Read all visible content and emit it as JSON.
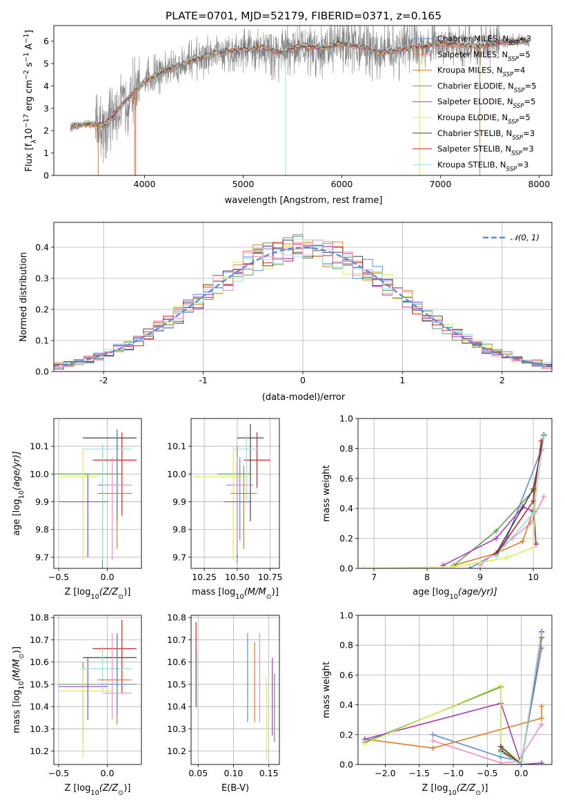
{
  "chart_data": [
    {
      "id": "spectrum",
      "type": "line",
      "title": "PLATE=0701, MJD=52179, FIBERID=0371, z=0.165",
      "xlabel": "wavelength [Angstrom, rest frame]",
      "ylabel": "Flux [f",
      "ylabel_sub": "λ",
      "ylabel_mid": "10",
      "ylabel_exp": "−17",
      "ylabel_tail": " erg cm",
      "ylabel_exp2": "−2",
      "ylabel_tail2": " s",
      "ylabel_exp3": "−1",
      "ylabel_tail3": " A",
      "ylabel_exp4": "−1",
      "ylabel_end": "]",
      "xlim": [
        3080,
        8130
      ],
      "ylim": [
        0,
        6.7
      ],
      "xticks": [
        4000,
        5000,
        6000,
        7000,
        8000
      ],
      "yticks": [
        0,
        1,
        2,
        3,
        4,
        5,
        6
      ],
      "grid": false,
      "legend_position": "right",
      "observed_color": "#808080",
      "continuum": {
        "x": [
          3250,
          3400,
          3600,
          3800,
          4000,
          4200,
          4400,
          4600,
          4800,
          5000,
          5200,
          5400,
          5600,
          5800,
          6000,
          6200,
          6400,
          6600,
          6800,
          7000,
          7200,
          7400,
          7600,
          7800,
          7900
        ],
        "y": [
          2.15,
          2.3,
          2.25,
          3.3,
          4.2,
          4.7,
          5.0,
          5.3,
          5.55,
          5.6,
          5.7,
          5.5,
          5.8,
          5.7,
          5.9,
          5.75,
          5.5,
          5.6,
          5.75,
          5.9,
          5.85,
          5.75,
          5.95,
          6.0,
          6.0
        ]
      },
      "legend": [
        {
          "pre": "Chabrier MILES, N",
          "sub": "SSP",
          "post": "=3",
          "color": "#5b8bd9"
        },
        {
          "pre": "Salpeter MILES, N",
          "sub": "SSP",
          "post": "=5",
          "color": "#ef7b7b"
        },
        {
          "pre": "Kroupa MILES, N",
          "sub": "SSP",
          "post": "=4",
          "color": "#e07b20"
        },
        {
          "pre": "Chabrier ELODIE, N",
          "sub": "SSP",
          "post": "=5",
          "color": "#5f9e55"
        },
        {
          "pre": "Salpeter ELODIE, N",
          "sub": "SSP",
          "post": "=5",
          "color": "#a53bbd"
        },
        {
          "pre": "Kroupa ELODIE, N",
          "sub": "SSP",
          "post": "=5",
          "color": "#d9ef5a"
        },
        {
          "pre": "Chabrier STELIB, N",
          "sub": "SSP",
          "post": "=3",
          "color": "#404040"
        },
        {
          "pre": "Salpeter STELIB, N",
          "sub": "SSP",
          "post": "=3",
          "color": "#c9201c"
        },
        {
          "pre": "Kroupa STELIB, N",
          "sub": "SSP",
          "post": "=3",
          "color": "#8fe0e0"
        }
      ]
    },
    {
      "id": "residuals",
      "type": "line",
      "xlabel": "(data-model)/error",
      "ylabel": "Normed distribution",
      "xlim": [
        -2.5,
        2.5
      ],
      "ylim": [
        0,
        0.48
      ],
      "xticks": [
        -2,
        -1,
        0,
        1,
        2
      ],
      "yticks": [
        0.0,
        0.1,
        0.2,
        0.3,
        0.4
      ],
      "ytick_labels": [
        "0.0",
        "0.1",
        "0.2",
        "0.3",
        "0.4"
      ],
      "grid": true,
      "legend_label": "𝒩(0, 1)",
      "gaussian_color": "#5b8bd9",
      "bin_width": 0.1,
      "hist_colors": [
        "#5b8bd9",
        "#e07b20",
        "#5f9e55",
        "#a53bbd",
        "#d9ef5a",
        "#404040",
        "#c9201c",
        "#8fe0e0",
        "#ef8fbf"
      ]
    },
    {
      "id": "age-vs-Z",
      "type": "scatter",
      "xlabel": "Z [log",
      "xlabel_sub": "10",
      "xlabel_tail": "(Z/Z",
      "xlabel_sub2": "⊙",
      "xlabel_end": ")]",
      "ylabel": "age  [log",
      "ylabel_sub": "10",
      "ylabel_tail": "(age/yr)]",
      "xlim": [
        -0.55,
        0.35
      ],
      "ylim": [
        9.66,
        10.2
      ],
      "xticks": [
        -0.5,
        0.0
      ],
      "xtick_labels": [
        "−0.5",
        "0.0"
      ],
      "yticks": [
        9.7,
        9.8,
        9.9,
        10.0,
        10.1
      ],
      "ytick_labels": [
        "9.7",
        "9.8",
        "9.9",
        "10.0",
        "10.1"
      ],
      "grid": true,
      "points": [
        {
          "x": -0.05,
          "y": 10.0,
          "xerr": [
            0.5,
            0.2
          ],
          "yerr": [
            0.4,
            0.1
          ],
          "color": "#5f9e55"
        },
        {
          "x": -0.25,
          "y": 9.99,
          "xerr": [
            0.25,
            0.15
          ],
          "yerr": [
            0.3,
            0.1
          ],
          "color": "#d9ef5a"
        },
        {
          "x": -0.2,
          "y": 9.9,
          "xerr": [
            0.3,
            0.2
          ],
          "yerr": [
            0.2,
            0.1
          ],
          "color": "#a53bbd"
        },
        {
          "x": 0.1,
          "y": 10.13,
          "xerr": [
            0.35,
            0.2
          ],
          "yerr": [
            0.3,
            0.03
          ],
          "color": "#404040"
        },
        {
          "x": 0.15,
          "y": 10.05,
          "xerr": [
            0.3,
            0.15
          ],
          "yerr": [
            0.2,
            0.1
          ],
          "color": "#c9201c"
        },
        {
          "x": -0.05,
          "y": 10.09,
          "xerr": [
            0.2,
            0.3
          ],
          "yerr": [
            0.4,
            0.02
          ],
          "color": "#8fe0e0"
        },
        {
          "x": 0.1,
          "y": 9.93,
          "xerr": [
            0.2,
            0.15
          ],
          "yerr": [
            0.2,
            0.1
          ],
          "color": "#e07b20"
        },
        {
          "x": 0.1,
          "y": 9.96,
          "xerr": [
            0.2,
            0.15
          ],
          "yerr": [
            0.1,
            0.2
          ],
          "color": "#5b8bd9"
        },
        {
          "x": 0.05,
          "y": 9.96,
          "xerr": [
            0.1,
            0.2
          ],
          "yerr": [
            0.27,
            0.1
          ],
          "color": "#ef8fbf"
        }
      ]
    },
    {
      "id": "age-vs-mass",
      "type": "scatter",
      "xlabel": "mass [log",
      "xlabel_sub": "10",
      "xlabel_tail": "(M/M",
      "xlabel_sub2": "⊙",
      "xlabel_end": ")]",
      "xlim": [
        10.15,
        10.82
      ],
      "ylim": [
        9.66,
        10.2
      ],
      "xticks": [
        10.25,
        10.5,
        10.75
      ],
      "xtick_labels": [
        "10.25",
        "10.50",
        "10.75"
      ],
      "yticks": [
        9.7,
        9.8,
        9.9,
        10.0,
        10.1
      ],
      "ytick_labels": [
        "9.7",
        "9.8",
        "9.9",
        "10.0",
        "10.1"
      ],
      "grid": true,
      "points": [
        {
          "x": 10.5,
          "y": 10.0,
          "xerr": [
            0.15,
            0.1
          ],
          "yerr": [
            0.32,
            0.1
          ],
          "color": "#5f9e55"
        },
        {
          "x": 10.47,
          "y": 9.99,
          "xerr": [
            0.3,
            0.1
          ],
          "yerr": [
            0.3,
            0.1
          ],
          "color": "#d9ef5a"
        },
        {
          "x": 10.5,
          "y": 9.9,
          "xerr": [
            0.1,
            0.1
          ],
          "yerr": [
            0.2,
            0.15
          ],
          "color": "#a53bbd"
        },
        {
          "x": 10.6,
          "y": 10.13,
          "xerr": [
            0.1,
            0.1
          ],
          "yerr": [
            0.3,
            0.05
          ],
          "color": "#404040"
        },
        {
          "x": 10.65,
          "y": 10.05,
          "xerr": [
            0.1,
            0.1
          ],
          "yerr": [
            0.1,
            0.1
          ],
          "color": "#c9201c"
        },
        {
          "x": 10.57,
          "y": 10.09,
          "xerr": [
            0.1,
            0.1
          ],
          "yerr": [
            0.2,
            0.05
          ],
          "color": "#8fe0e0"
        },
        {
          "x": 10.55,
          "y": 9.93,
          "xerr": [
            0.1,
            0.1
          ],
          "yerr": [
            0.2,
            0.1
          ],
          "color": "#e07b20"
        },
        {
          "x": 10.52,
          "y": 9.96,
          "xerr": [
            0.1,
            0.1
          ],
          "yerr": [
            0.2,
            0.1
          ],
          "color": "#5b8bd9"
        },
        {
          "x": 10.5,
          "y": 9.96,
          "xerr": [
            0.05,
            0.1
          ],
          "yerr": [
            0.25,
            0.1
          ],
          "color": "#ef8fbf"
        }
      ]
    },
    {
      "id": "weight-vs-age",
      "type": "line",
      "xlabel": "age  [log",
      "xlabel_sub": "10",
      "xlabel_tail": "(age/yr)]",
      "ylabel": "mass weight",
      "xlim": [
        6.7,
        10.35
      ],
      "ylim": [
        0,
        1.0
      ],
      "xticks": [
        7,
        8,
        9,
        10
      ],
      "yticks": [
        0.0,
        0.2,
        0.4,
        0.6,
        0.8,
        1.0
      ],
      "ytick_labels": [
        "0.0",
        "0.2",
        "0.4",
        "0.6",
        "0.8",
        "1.0"
      ],
      "grid": true,
      "series": [
        {
          "color": "#5b8bd9",
          "x": [
            8.8,
            9.3,
            9.5,
            10.15
          ],
          "y": [
            0.0,
            0.1,
            0.2,
            0.79
          ]
        },
        {
          "color": "#ef8fbf",
          "x": [
            9.0,
            9.6,
            9.95,
            10.2
          ],
          "y": [
            0.02,
            0.2,
            0.3,
            0.48
          ]
        },
        {
          "color": "#e07b20",
          "x": [
            8.5,
            9.3,
            9.8,
            10.0
          ],
          "y": [
            0.02,
            0.1,
            0.18,
            0.39
          ]
        },
        {
          "color": "#5f9e55",
          "x": [
            8.5,
            9.3,
            10.0,
            10.05
          ],
          "y": [
            0.02,
            0.25,
            0.52,
            0.17
          ]
        },
        {
          "color": "#a53bbd",
          "x": [
            8.3,
            9.3,
            9.8,
            10.0,
            10.05
          ],
          "y": [
            0.02,
            0.2,
            0.41,
            0.38,
            0.16
          ]
        },
        {
          "color": "#d9ef5a",
          "x": [
            6.8,
            8.5,
            9.5,
            10.0,
            10.05
          ],
          "y": [
            0.0,
            0.01,
            0.07,
            0.14,
            0.52
          ]
        },
        {
          "color": "#404040",
          "x": [
            9.3,
            10.0,
            10.2
          ],
          "y": [
            0.1,
            0.53,
            0.89
          ]
        },
        {
          "color": "#c9201c",
          "x": [
            9.3,
            10.0,
            10.15
          ],
          "y": [
            0.09,
            0.45,
            0.85
          ]
        },
        {
          "color": "#8fe0e0",
          "x": [
            9.3,
            10.0,
            10.2
          ],
          "y": [
            0.08,
            0.37,
            0.88
          ]
        }
      ]
    },
    {
      "id": "mass-vs-Z",
      "type": "scatter",
      "xlabel": "Z [log",
      "xlabel_sub": "10",
      "xlabel_tail": "(Z/Z",
      "xlabel_sub2": "⊙",
      "xlabel_end": ")]",
      "ylabel": "mass [log",
      "ylabel_sub": "10",
      "ylabel_tail": "(M/M",
      "ylabel_sub2": "⊙",
      "ylabel_end": ")]",
      "xlim": [
        -0.55,
        0.35
      ],
      "ylim": [
        10.14,
        10.81
      ],
      "xticks": [
        -0.5,
        0.0
      ],
      "xtick_labels": [
        "−0.5",
        "0.0"
      ],
      "yticks": [
        10.2,
        10.3,
        10.4,
        10.5,
        10.6,
        10.7,
        10.8
      ],
      "ytick_labels": [
        "10.2",
        "10.3",
        "10.4",
        "10.5",
        "10.6",
        "10.7",
        "10.8"
      ],
      "grid": true,
      "points": [
        {
          "x": -0.25,
          "y": 10.5,
          "xerr": [
            0.25,
            0.55
          ],
          "yerr": [
            0.26,
            0.1
          ],
          "color": "#5f9e55"
        },
        {
          "x": -0.25,
          "y": 10.47,
          "xerr": [
            0.25,
            0.3
          ],
          "yerr": [
            0.3,
            0.1
          ],
          "color": "#d9ef5a"
        },
        {
          "x": -0.2,
          "y": 10.49,
          "xerr": [
            0.3,
            0.2
          ],
          "yerr": [
            0.15,
            0.13
          ],
          "color": "#a53bbd"
        },
        {
          "x": 0.1,
          "y": 10.62,
          "xerr": [
            0.35,
            0.2
          ],
          "yerr": [
            0.2,
            0.1
          ],
          "color": "#404040"
        },
        {
          "x": 0.15,
          "y": 10.66,
          "xerr": [
            0.3,
            0.15
          ],
          "yerr": [
            0.2,
            0.13
          ],
          "color": "#c9201c"
        },
        {
          "x": -0.05,
          "y": 10.57,
          "xerr": [
            0.2,
            0.3
          ],
          "yerr": [
            0.1,
            0.1
          ],
          "color": "#8fe0e0"
        },
        {
          "x": 0.1,
          "y": 10.52,
          "xerr": [
            0.2,
            0.15
          ],
          "yerr": [
            0.2,
            0.17
          ],
          "color": "#e07b20"
        },
        {
          "x": 0.1,
          "y": 10.5,
          "xerr": [
            0.2,
            0.15
          ],
          "yerr": [
            0.14,
            0.23
          ],
          "color": "#5b8bd9"
        },
        {
          "x": 0.05,
          "y": 10.46,
          "xerr": [
            0.1,
            0.2
          ],
          "yerr": [
            0.12,
            0.27
          ],
          "color": "#ef8fbf"
        }
      ]
    },
    {
      "id": "mass-vs-ebv",
      "type": "scatter",
      "xlabel": "E(B-V)",
      "xlim": [
        0.04,
        0.165
      ],
      "ylim": [
        10.14,
        10.81
      ],
      "xticks": [
        0.05,
        0.1,
        0.15
      ],
      "xtick_labels": [
        "0.05",
        "0.10",
        "0.15"
      ],
      "yticks": [
        10.2,
        10.3,
        10.4,
        10.5,
        10.6,
        10.7,
        10.8
      ],
      "ytick_labels": [
        "10.2",
        "10.3",
        "10.4",
        "10.5",
        "10.6",
        "10.7",
        "10.8"
      ],
      "grid": true,
      "points": [
        {
          "x": 0.047,
          "y": 10.56,
          "yerr": [
            0.16,
            0.22
          ],
          "color": "#c9201c"
        },
        {
          "x": 0.048,
          "y": 10.53,
          "yerr": [
            0.14,
            0.12
          ],
          "color": "#8fe0e0"
        },
        {
          "x": 0.12,
          "y": 10.53,
          "yerr": [
            0.2,
            0.2
          ],
          "color": "#5b8bd9"
        },
        {
          "x": 0.13,
          "y": 10.53,
          "yerr": [
            0.2,
            0.16
          ],
          "color": "#e07b20"
        },
        {
          "x": 0.137,
          "y": 10.53,
          "yerr": [
            0.2,
            0.2
          ],
          "color": "#ef8fbf"
        },
        {
          "x": 0.147,
          "y": 10.39,
          "yerr": [
            0.22,
            0.14
          ],
          "color": "#d9ef5a"
        },
        {
          "x": 0.155,
          "y": 10.44,
          "yerr": [
            0.17,
            0.18
          ],
          "color": "#a53bbd"
        },
        {
          "x": 0.158,
          "y": 10.39,
          "yerr": [
            0.15,
            0.16
          ],
          "color": "#5f9e55"
        }
      ]
    },
    {
      "id": "weight-vs-Z",
      "type": "line",
      "xlabel": "Z [log",
      "xlabel_sub": "10",
      "xlabel_tail": "(Z/Z",
      "xlabel_sub2": "⊙",
      "xlabel_end": ")]",
      "ylabel": "mass weight",
      "xlim": [
        -2.4,
        0.45
      ],
      "ylim": [
        0,
        1.0
      ],
      "xticks": [
        -2.0,
        -1.5,
        -1.0,
        -0.5,
        0.0
      ],
      "xtick_labels": [
        "−2.0",
        "−1.5",
        "−1.0",
        "−0.5",
        "0.0"
      ],
      "yticks": [
        0.0,
        0.2,
        0.4,
        0.6,
        0.8,
        1.0
      ],
      "ytick_labels": [
        "0.0",
        "0.2",
        "0.4",
        "0.6",
        "0.8",
        "1.0"
      ],
      "grid": true,
      "series": [
        {
          "color": "#5b8bd9",
          "x": [
            -1.3,
            -0.3,
            0.0,
            0.3
          ],
          "y": [
            0.2,
            0.05,
            0.02,
            0.78
          ]
        },
        {
          "color": "#ef8fbf",
          "x": [
            -1.3,
            -0.3,
            -0.05,
            0.3
          ],
          "y": [
            0.16,
            0.01,
            0.02,
            0.27
          ]
        },
        {
          "color": "#e07b20",
          "x": [
            -2.3,
            -1.3,
            0.3,
            0.3
          ],
          "y": [
            0.17,
            0.11,
            0.31,
            0.39
          ]
        },
        {
          "color": "#5f9e55",
          "x": [
            -2.3,
            -0.3,
            -0.3,
            0.0
          ],
          "y": [
            0.15,
            0.52,
            0.1,
            0.0
          ]
        },
        {
          "color": "#a53bbd",
          "x": [
            -2.3,
            -0.3,
            0.0,
            0.3
          ],
          "y": [
            0.17,
            0.41,
            0.0,
            0.01
          ]
        },
        {
          "color": "#d9ef5a",
          "x": [
            -2.3,
            -0.3,
            -0.3,
            0.0
          ],
          "y": [
            0.14,
            0.53,
            0.12,
            0.02
          ]
        },
        {
          "color": "#404040",
          "x": [
            -0.3,
            0.0,
            0.3
          ],
          "y": [
            0.12,
            0.0,
            0.89
          ]
        },
        {
          "color": "#c9201c",
          "x": [
            -0.3,
            0.0,
            0.3
          ],
          "y": [
            0.09,
            0.0,
            0.85
          ]
        },
        {
          "color": "#8fe0e0",
          "x": [
            -0.3,
            0.0,
            0.3
          ],
          "y": [
            0.08,
            0.0,
            0.88
          ]
        }
      ]
    }
  ]
}
